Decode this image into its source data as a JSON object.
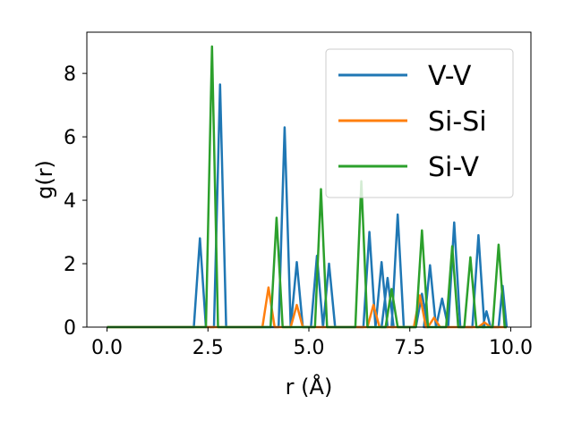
{
  "chart_data": {
    "type": "line",
    "xlabel": "r (Å)",
    "ylabel": "g(r)",
    "xlim": [
      -0.5,
      10.5
    ],
    "ylim": [
      0,
      9.3
    ],
    "xticks": [
      0.0,
      2.5,
      5.0,
      7.5,
      10.0
    ],
    "xtick_labels": [
      "0.0",
      "2.5",
      "5.0",
      "7.5",
      "10.0"
    ],
    "yticks": [
      0,
      2,
      4,
      6,
      8
    ],
    "ytick_labels": [
      "0",
      "2",
      "4",
      "6",
      "8"
    ],
    "grid": false,
    "legend_position": "top-right",
    "series": [
      {
        "name": "V-V",
        "color": "#1f77b4",
        "x": [
          0.0,
          2.15,
          2.3,
          2.45,
          2.65,
          2.8,
          2.95,
          4.25,
          4.4,
          4.55,
          4.55,
          4.7,
          4.85,
          5.05,
          5.2,
          5.35,
          5.35,
          5.5,
          5.65,
          6.35,
          6.5,
          6.65,
          6.65,
          6.8,
          6.95,
          6.8,
          6.95,
          7.1,
          7.05,
          7.2,
          7.35,
          7.65,
          7.8,
          7.95,
          7.85,
          8.0,
          8.15,
          8.15,
          8.3,
          8.45,
          8.45,
          8.6,
          8.75,
          9.05,
          9.2,
          9.35,
          9.3,
          9.4,
          9.5,
          9.7,
          9.8,
          9.9
        ],
        "y": [
          0,
          0,
          2.8,
          0,
          0,
          7.65,
          0,
          0,
          6.3,
          0,
          0,
          2.05,
          0,
          0,
          2.25,
          0,
          0,
          2.0,
          0,
          0,
          3.0,
          0,
          0,
          2.05,
          0,
          0,
          1.55,
          0,
          0,
          3.55,
          0,
          0,
          1.05,
          0,
          0,
          1.95,
          0,
          0,
          0.9,
          0,
          0,
          3.3,
          0,
          0,
          2.9,
          0,
          0,
          0.5,
          0,
          0,
          1.3,
          0
        ]
      },
      {
        "name": "Si-Si",
        "color": "#ff7f0e",
        "x": [
          0.0,
          3.85,
          4.0,
          4.15,
          4.55,
          4.7,
          4.85,
          6.45,
          6.6,
          6.75,
          7.6,
          7.75,
          7.9,
          7.95,
          8.1,
          8.25,
          9.2,
          9.35,
          9.5,
          9.9
        ],
        "y": [
          0,
          0,
          1.25,
          0,
          0,
          0.7,
          0,
          0,
          0.7,
          0,
          0,
          1.0,
          0,
          0,
          0.3,
          0,
          0,
          0.15,
          0,
          0
        ]
      },
      {
        "name": "Si-V",
        "color": "#2ca02c",
        "x": [
          0.0,
          2.45,
          2.6,
          2.75,
          4.05,
          4.2,
          4.35,
          5.15,
          5.3,
          5.45,
          6.15,
          6.3,
          6.45,
          6.9,
          7.05,
          7.2,
          7.65,
          7.8,
          7.95,
          8.4,
          8.55,
          8.7,
          8.85,
          9.0,
          9.15,
          9.55,
          9.7,
          9.85,
          9.9
        ],
        "y": [
          0,
          0,
          8.85,
          0,
          0,
          3.45,
          0,
          0,
          4.35,
          0,
          0,
          4.6,
          0,
          0,
          1.2,
          0,
          0,
          3.05,
          0,
          0,
          2.55,
          0,
          0,
          2.2,
          0,
          0,
          2.6,
          0,
          0
        ]
      }
    ]
  }
}
